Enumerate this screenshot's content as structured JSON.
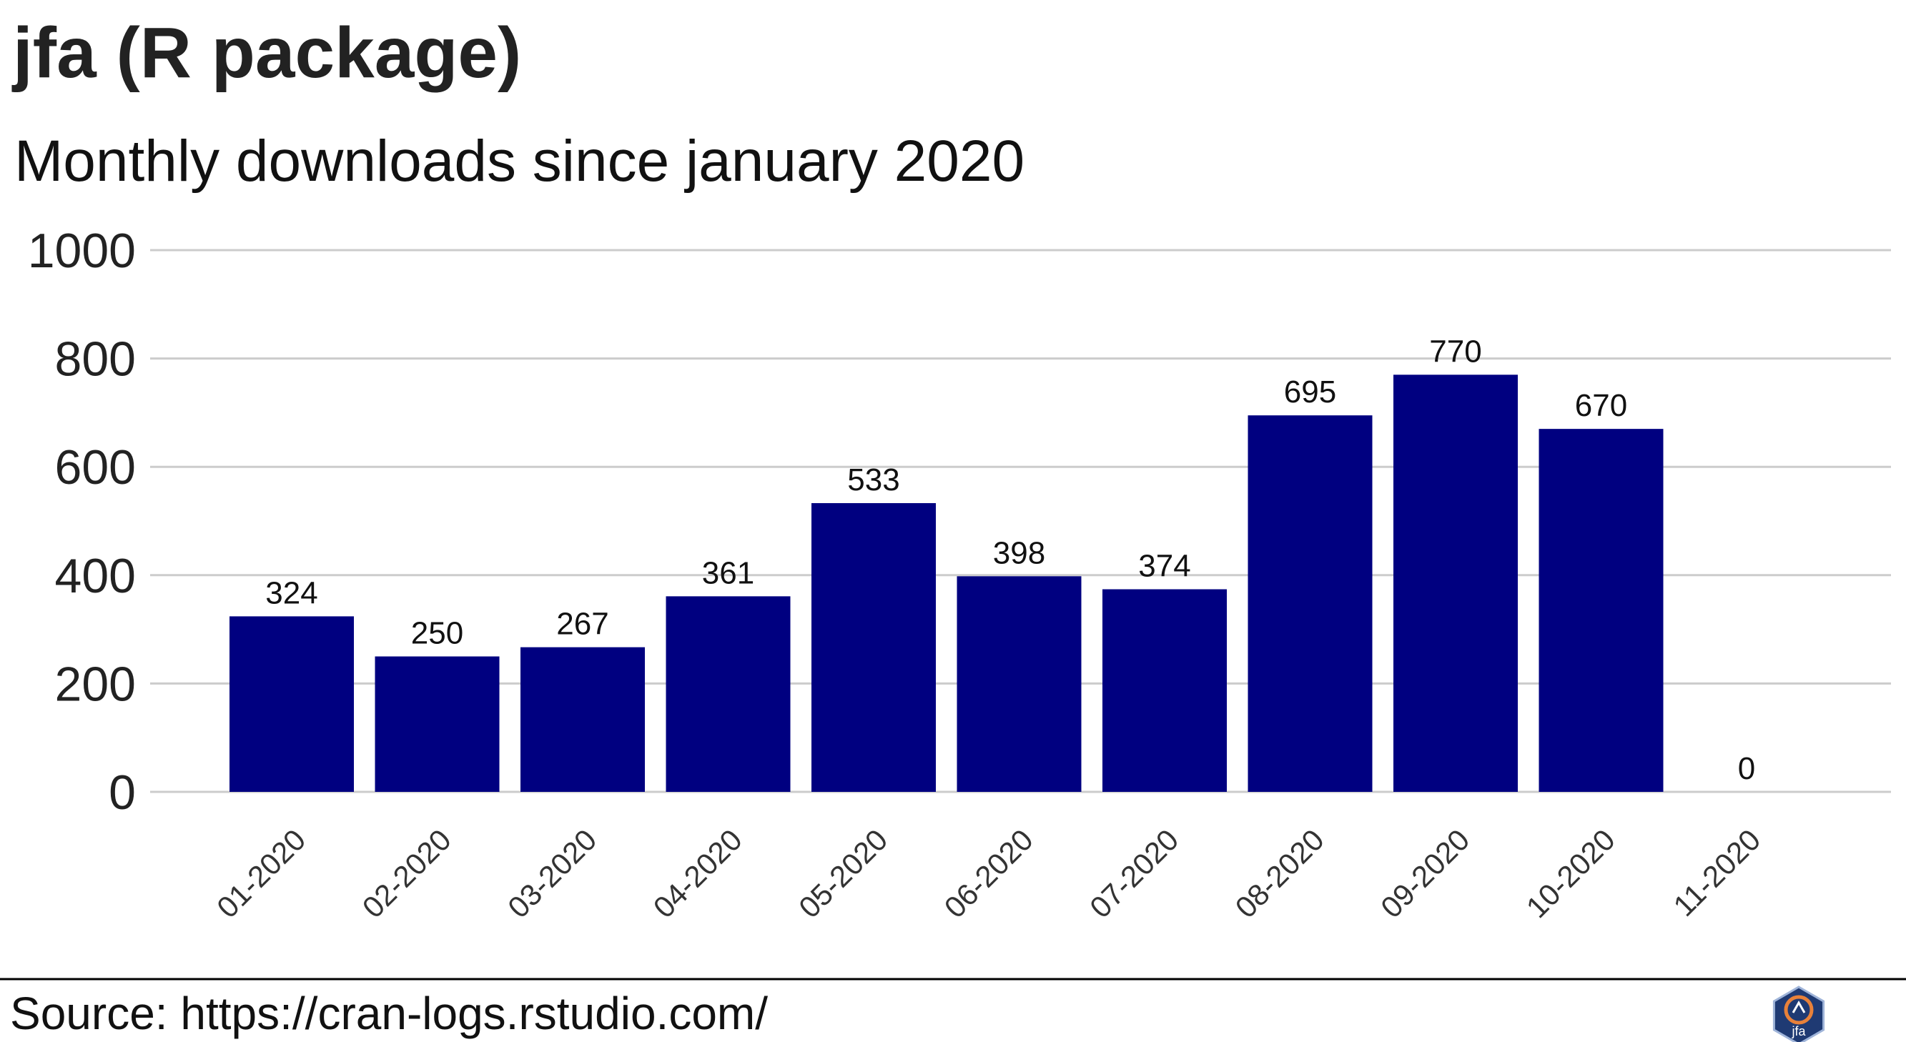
{
  "header": {
    "title": "jfa (R package)",
    "subtitle": "Monthly downloads since january 2020"
  },
  "footer": {
    "source": "Source: https://cran-logs.rstudio.com/",
    "logo_text": "jfa",
    "logo_icon": "jfa-hex-logo-icon"
  },
  "colors": {
    "bar": "#000080",
    "grid": "#cccccc",
    "separator": "#000000",
    "logo_bg": "#1f3a73",
    "logo_accent": "#e8813a"
  },
  "chart_data": {
    "type": "bar",
    "categories": [
      "01-2020",
      "02-2020",
      "03-2020",
      "04-2020",
      "05-2020",
      "06-2020",
      "07-2020",
      "08-2020",
      "09-2020",
      "10-2020",
      "11-2020"
    ],
    "values": [
      324,
      250,
      267,
      361,
      533,
      398,
      374,
      695,
      770,
      670,
      0
    ],
    "title": "jfa (R package)",
    "subtitle": "Monthly downloads since january 2020",
    "xlabel": "",
    "ylabel": "",
    "ylim": [
      0,
      1000
    ],
    "yticks": [
      0,
      200,
      400,
      600,
      800,
      1000
    ],
    "grid": "horizontal",
    "legend": "none",
    "data_labels": true
  }
}
